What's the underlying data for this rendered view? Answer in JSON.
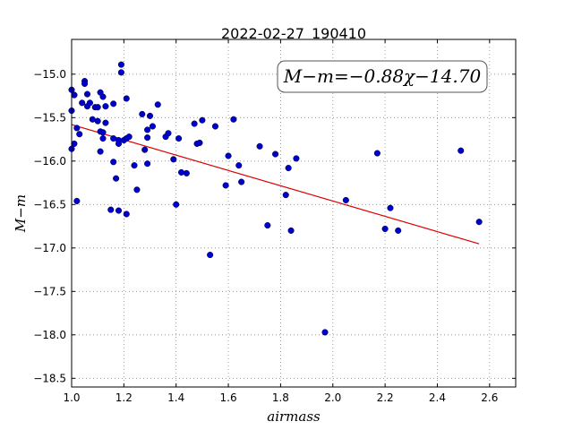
{
  "chart_data": {
    "type": "scatter",
    "title": "2022-02-27_190410",
    "xlabel": "airmass",
    "ylabel": "M−m",
    "xlim": [
      1.0,
      2.7
    ],
    "ylim": [
      -18.6,
      -14.6
    ],
    "xticks": [
      1.0,
      1.2,
      1.4,
      1.6,
      1.8,
      2.0,
      2.2,
      2.4,
      2.6
    ],
    "xtick_labels": [
      "1.0",
      "1.2",
      "1.4",
      "1.6",
      "1.8",
      "2.0",
      "2.2",
      "2.4",
      "2.6"
    ],
    "yticks": [
      -15.0,
      -15.5,
      -16.0,
      -16.5,
      -17.0,
      -17.5,
      -18.0,
      -18.5
    ],
    "ytick_labels": [
      "−15.0",
      "−15.5",
      "−16.0",
      "−16.5",
      "−17.0",
      "−17.5",
      "−18.0",
      "−18.5"
    ],
    "grid": true,
    "annotation": "M−m=−0.88χ−14.70",
    "colors": {
      "points": "#0000cc",
      "fit": "#dd0000"
    },
    "fit": {
      "slope": -0.88,
      "intercept": -14.7,
      "x_range": [
        1.0,
        2.56
      ]
    },
    "points": [
      [
        1.0,
        -15.18
      ],
      [
        1.01,
        -15.24
      ],
      [
        1.0,
        -15.42
      ],
      [
        1.01,
        -15.8
      ],
      [
        1.0,
        -15.86
      ],
      [
        1.02,
        -15.62
      ],
      [
        1.03,
        -15.69
      ],
      [
        1.02,
        -16.46
      ],
      [
        1.01,
        -15.24
      ],
      [
        1.04,
        -15.33
      ],
      [
        1.05,
        -15.08
      ],
      [
        1.05,
        -15.11
      ],
      [
        1.06,
        -15.23
      ],
      [
        1.06,
        -15.37
      ],
      [
        1.07,
        -15.33
      ],
      [
        1.08,
        -15.52
      ],
      [
        1.09,
        -15.38
      ],
      [
        1.1,
        -15.38
      ],
      [
        1.1,
        -15.54
      ],
      [
        1.11,
        -15.21
      ],
      [
        1.12,
        -15.26
      ],
      [
        1.11,
        -15.66
      ],
      [
        1.12,
        -15.67
      ],
      [
        1.12,
        -15.74
      ],
      [
        1.13,
        -15.37
      ],
      [
        1.13,
        -15.56
      ],
      [
        1.11,
        -15.89
      ],
      [
        1.15,
        -16.56
      ],
      [
        1.16,
        -15.34
      ],
      [
        1.16,
        -15.74
      ],
      [
        1.16,
        -16.01
      ],
      [
        1.17,
        -16.2
      ],
      [
        1.18,
        -15.76
      ],
      [
        1.18,
        -15.8
      ],
      [
        1.18,
        -16.57
      ],
      [
        1.19,
        -14.89
      ],
      [
        1.19,
        -14.98
      ],
      [
        1.2,
        -15.76
      ],
      [
        1.21,
        -15.28
      ],
      [
        1.21,
        -15.74
      ],
      [
        1.22,
        -15.72
      ],
      [
        1.21,
        -16.61
      ],
      [
        1.24,
        -16.05
      ],
      [
        1.25,
        -16.33
      ],
      [
        1.27,
        -15.46
      ],
      [
        1.28,
        -15.87
      ],
      [
        1.29,
        -15.64
      ],
      [
        1.29,
        -15.73
      ],
      [
        1.29,
        -16.03
      ],
      [
        1.3,
        -15.48
      ],
      [
        1.31,
        -15.6
      ],
      [
        1.33,
        -15.35
      ],
      [
        1.36,
        -15.72
      ],
      [
        1.37,
        -15.68
      ],
      [
        1.39,
        -15.98
      ],
      [
        1.4,
        -16.5
      ],
      [
        1.41,
        -15.74
      ],
      [
        1.42,
        -16.13
      ],
      [
        1.44,
        -16.14
      ],
      [
        1.47,
        -15.57
      ],
      [
        1.48,
        -15.8
      ],
      [
        1.49,
        -15.79
      ],
      [
        1.5,
        -15.53
      ],
      [
        1.53,
        -17.08
      ],
      [
        1.55,
        -15.6
      ],
      [
        1.59,
        -16.28
      ],
      [
        1.6,
        -15.94
      ],
      [
        1.62,
        -15.52
      ],
      [
        1.64,
        -16.05
      ],
      [
        1.65,
        -16.24
      ],
      [
        1.72,
        -15.83
      ],
      [
        1.75,
        -16.74
      ],
      [
        1.78,
        -15.92
      ],
      [
        1.82,
        -16.39
      ],
      [
        1.83,
        -16.08
      ],
      [
        1.84,
        -16.8
      ],
      [
        1.86,
        -15.97
      ],
      [
        1.97,
        -17.97
      ],
      [
        2.05,
        -16.45
      ],
      [
        2.17,
        -15.91
      ],
      [
        2.2,
        -16.78
      ],
      [
        2.22,
        -16.54
      ],
      [
        2.25,
        -16.8
      ],
      [
        2.49,
        -15.88
      ],
      [
        2.56,
        -16.7
      ]
    ]
  }
}
